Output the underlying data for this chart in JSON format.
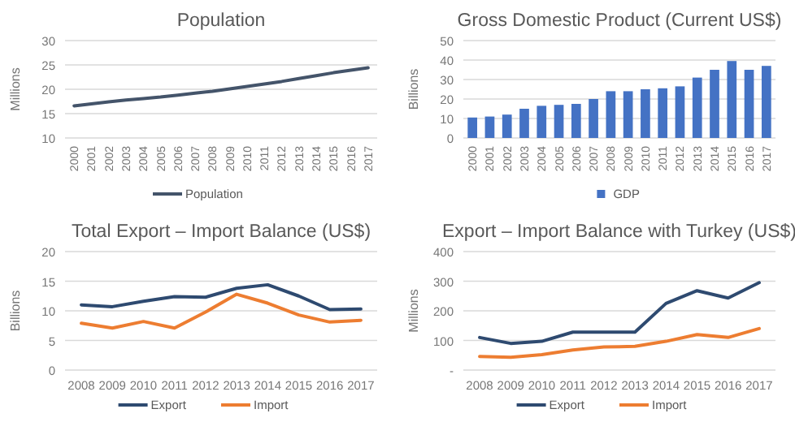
{
  "chart_data": [
    {
      "type": "line",
      "title": "Population",
      "ylabel": "Millions",
      "categories": [
        "2000",
        "2001",
        "2002",
        "2003",
        "2004",
        "2005",
        "2006",
        "2007",
        "2008",
        "2009",
        "2010",
        "2011",
        "2012",
        "2013",
        "2014",
        "2015",
        "2016",
        "2017"
      ],
      "series": [
        {
          "name": "Population",
          "color": "#44546a",
          "values": [
            16.6,
            17.0,
            17.4,
            17.8,
            18.1,
            18.4,
            18.8,
            19.2,
            19.6,
            20.1,
            20.6,
            21.1,
            21.6,
            22.2,
            22.8,
            23.4,
            23.9,
            24.4
          ]
        }
      ],
      "ylim": [
        10,
        30
      ],
      "yticks": [
        10,
        15,
        20,
        25,
        30
      ],
      "grid": "y",
      "legend": "bottom"
    },
    {
      "type": "bar",
      "title": "Gross Domestic Product (Current US$)",
      "ylabel": "Billions",
      "categories": [
        "2000",
        "2001",
        "2002",
        "2003",
        "2004",
        "2005",
        "2006",
        "2007",
        "2008",
        "2009",
        "2010",
        "2011",
        "2012",
        "2013",
        "2014",
        "2015",
        "2016",
        "2017"
      ],
      "series": [
        {
          "name": "GDP",
          "color": "#4472c4",
          "values": [
            10.5,
            11,
            12,
            15,
            16.5,
            17,
            17.5,
            20,
            24,
            24,
            25,
            25.5,
            26.5,
            31,
            35,
            39.5,
            35,
            37
          ]
        }
      ],
      "ylim": [
        0,
        50
      ],
      "yticks": [
        0,
        10,
        20,
        30,
        40,
        50
      ],
      "grid": "y",
      "legend": "bottom"
    },
    {
      "type": "line",
      "title": "Total Export – Import Balance (US$)",
      "ylabel": "Billions",
      "categories": [
        "2008",
        "2009",
        "2010",
        "2011",
        "2012",
        "2013",
        "2014",
        "2015",
        "2016",
        "2017"
      ],
      "series": [
        {
          "name": "Export",
          "color": "#2e4a70",
          "values": [
            11,
            10.7,
            11.6,
            12.4,
            12.3,
            13.8,
            14.4,
            12.5,
            10.2,
            10.3
          ]
        },
        {
          "name": "Import",
          "color": "#ed7d31",
          "values": [
            7.9,
            7.1,
            8.2,
            7.1,
            9.8,
            12.8,
            11.3,
            9.3,
            8.1,
            8.4
          ]
        }
      ],
      "ylim": [
        0,
        20
      ],
      "yticks": [
        0,
        5,
        10,
        15,
        20
      ],
      "grid": "y",
      "legend": "bottom"
    },
    {
      "type": "line",
      "title": "Export – Import Balance with Turkey (US$)",
      "ylabel": "Millions",
      "categories": [
        "2008",
        "2009",
        "2010",
        "2011",
        "2012",
        "2013",
        "2014",
        "2015",
        "2016",
        "2017"
      ],
      "series": [
        {
          "name": "Export",
          "color": "#2e4a70",
          "values": [
            110,
            90,
            97,
            128,
            128,
            128,
            225,
            268,
            243,
            295
          ]
        },
        {
          "name": "Import",
          "color": "#ed7d31",
          "values": [
            46,
            43,
            52,
            68,
            78,
            80,
            97,
            120,
            110,
            140
          ]
        }
      ],
      "ylim": [
        0,
        400
      ],
      "yticks": [
        {
          "value": 0,
          "label": "-"
        },
        100,
        200,
        300,
        400
      ],
      "grid": "y",
      "legend": "bottom"
    }
  ]
}
